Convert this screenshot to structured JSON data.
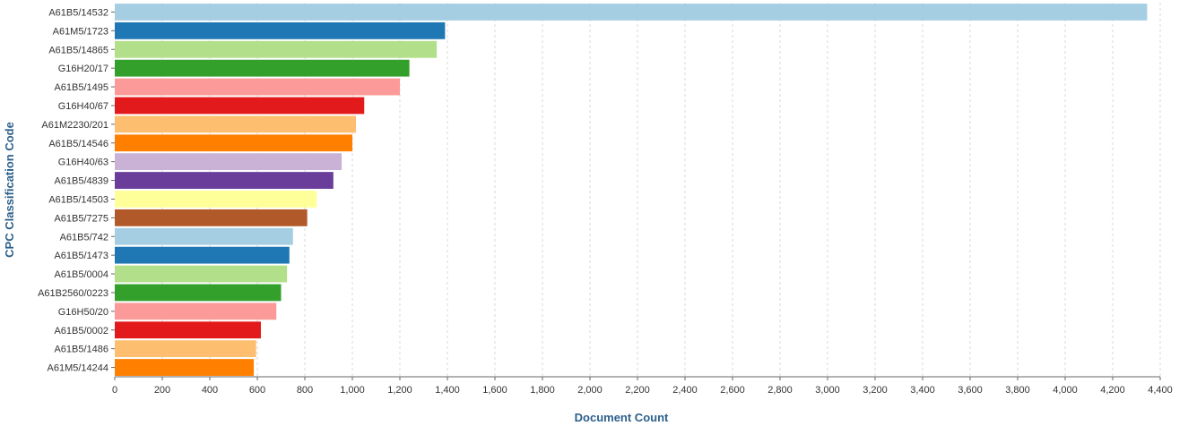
{
  "chart_data": {
    "type": "bar",
    "orientation": "horizontal",
    "xlabel": "Document Count",
    "ylabel": "CPC Classification Code",
    "xlim": [
      0,
      4400
    ],
    "xticks": [
      0,
      200,
      400,
      600,
      800,
      1000,
      1200,
      1400,
      1600,
      1800,
      2000,
      2200,
      2400,
      2600,
      2800,
      3000,
      3200,
      3400,
      3600,
      3800,
      4000,
      4200,
      4400
    ],
    "xtick_labels": [
      "0",
      "200",
      "400",
      "600",
      "800",
      "1,000",
      "1,200",
      "1,400",
      "1,600",
      "1,800",
      "2,000",
      "2,200",
      "2,400",
      "2,600",
      "2,800",
      "3,000",
      "3,200",
      "3,400",
      "3,600",
      "3,800",
      "4,000",
      "4,200",
      "4,400"
    ],
    "grid": "vertical dashed",
    "categories": [
      "A61B5/14532",
      "A61M5/1723",
      "A61B5/14865",
      "G16H20/17",
      "A61B5/1495",
      "G16H40/67",
      "A61M2230/201",
      "A61B5/14546",
      "G16H40/63",
      "A61B5/4839",
      "A61B5/14503",
      "A61B5/7275",
      "A61B5/742",
      "A61B5/1473",
      "A61B5/0004",
      "A61B2560/0223",
      "G16H50/20",
      "A61B5/0002",
      "A61B5/1486",
      "A61M5/14244"
    ],
    "values": [
      4345,
      1390,
      1355,
      1240,
      1200,
      1050,
      1015,
      1000,
      955,
      920,
      850,
      810,
      750,
      735,
      725,
      700,
      680,
      615,
      595,
      585
    ],
    "colors": [
      "#a6cee3",
      "#1f78b4",
      "#b2df8a",
      "#33a02c",
      "#fb9a99",
      "#e31a1c",
      "#fdbf6f",
      "#ff7f00",
      "#cab2d6",
      "#6a3d9a",
      "#ffff99",
      "#b15928",
      "#a6cee3",
      "#1f78b4",
      "#b2df8a",
      "#33a02c",
      "#fb9a99",
      "#e31a1c",
      "#fdbf6f",
      "#ff7f00"
    ]
  }
}
